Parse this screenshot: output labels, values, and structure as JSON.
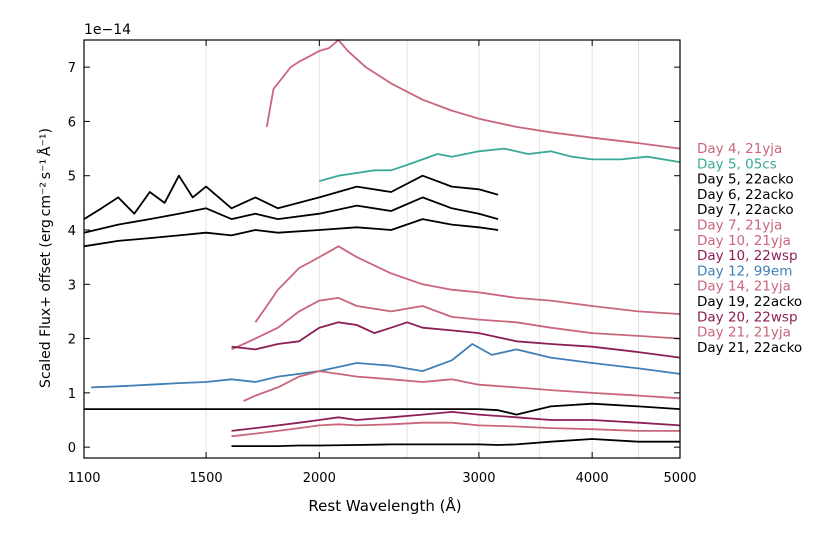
{
  "chart_data": {
    "type": "line",
    "title": "",
    "offset_label": "1e−14",
    "xlabel": "Rest Wavelength (Å)",
    "ylabel": "Scaled Flux+ offset (erg cm⁻² s⁻¹ Å⁻¹)",
    "x_scale": "log",
    "xlim": [
      1100,
      5000
    ],
    "ylim": [
      -0.2,
      7.5
    ],
    "x_ticks": [
      1100,
      1500,
      2000,
      3000,
      4000,
      5000
    ],
    "x_tick_labels": [
      "1100",
      "1500",
      "2000",
      "3000",
      "4000",
      "5000"
    ],
    "y_ticks": [
      0,
      1,
      2,
      3,
      4,
      5,
      6,
      7
    ],
    "y_tick_labels": [
      "0",
      "1",
      "2",
      "3",
      "4",
      "5",
      "6",
      "7"
    ],
    "vertical_gridlines": [
      1500,
      2000,
      2500,
      3000,
      3500,
      4000,
      4500
    ],
    "series": [
      {
        "name": "Day 4, 21yja",
        "color": "#c9667c",
        "x": [
          1750,
          1780,
          1820,
          1860,
          1900,
          1950,
          2000,
          2050,
          2100,
          2150,
          2250,
          2400,
          2600,
          2800,
          3000,
          3300,
          3600,
          4000,
          4500,
          5000
        ],
        "values": [
          5.9,
          6.6,
          6.8,
          7.0,
          7.1,
          7.2,
          7.3,
          7.35,
          7.5,
          7.3,
          7.0,
          6.7,
          6.4,
          6.2,
          6.05,
          5.9,
          5.8,
          5.7,
          5.6,
          5.5
        ]
      },
      {
        "name": "Day 5, 05cs",
        "color": "#3aaa98",
        "x": [
          2000,
          2100,
          2200,
          2300,
          2400,
          2500,
          2600,
          2700,
          2800,
          2900,
          3000,
          3200,
          3400,
          3600,
          3800,
          4000,
          4300,
          4600,
          5000
        ],
        "values": [
          4.9,
          5.0,
          5.05,
          5.1,
          5.1,
          5.2,
          5.3,
          5.4,
          5.35,
          5.4,
          5.45,
          5.5,
          5.4,
          5.45,
          5.35,
          5.3,
          5.3,
          5.35,
          5.25
        ]
      },
      {
        "name": "Day 5, 22acko",
        "color": "#000000",
        "x": [
          1100,
          1150,
          1200,
          1250,
          1300,
          1350,
          1400,
          1450,
          1500,
          1600,
          1700,
          1800,
          2000,
          2200,
          2400,
          2600,
          2800,
          3000,
          3150
        ],
        "values": [
          4.2,
          4.4,
          4.6,
          4.3,
          4.7,
          4.5,
          5.0,
          4.6,
          4.8,
          4.4,
          4.6,
          4.4,
          4.6,
          4.8,
          4.7,
          5.0,
          4.8,
          4.75,
          4.65
        ]
      },
      {
        "name": "Day 6, 22acko",
        "color": "#000000",
        "x": [
          1100,
          1200,
          1300,
          1400,
          1500,
          1600,
          1700,
          1800,
          2000,
          2200,
          2400,
          2600,
          2800,
          3000,
          3150
        ],
        "values": [
          3.95,
          4.1,
          4.2,
          4.3,
          4.4,
          4.2,
          4.3,
          4.2,
          4.3,
          4.45,
          4.35,
          4.6,
          4.4,
          4.3,
          4.2
        ]
      },
      {
        "name": "Day 7, 22acko",
        "color": "#000000",
        "x": [
          1100,
          1200,
          1300,
          1400,
          1500,
          1600,
          1700,
          1800,
          2000,
          2200,
          2400,
          2600,
          2800,
          3000,
          3150
        ],
        "values": [
          3.7,
          3.8,
          3.85,
          3.9,
          3.95,
          3.9,
          4.0,
          3.95,
          4.0,
          4.05,
          4.0,
          4.2,
          4.1,
          4.05,
          4.0
        ]
      },
      {
        "name": "Day 7, 21yja",
        "color": "#c9667c",
        "x": [
          1700,
          1750,
          1800,
          1850,
          1900,
          1950,
          2000,
          2050,
          2100,
          2200,
          2400,
          2600,
          2800,
          3000,
          3300,
          3600,
          4000,
          4500,
          5000
        ],
        "values": [
          2.3,
          2.6,
          2.9,
          3.1,
          3.3,
          3.4,
          3.5,
          3.6,
          3.7,
          3.5,
          3.2,
          3.0,
          2.9,
          2.85,
          2.75,
          2.7,
          2.6,
          2.5,
          2.45
        ]
      },
      {
        "name": "Day 10, 21yja",
        "color": "#c9667c",
        "x": [
          1600,
          1650,
          1700,
          1800,
          1900,
          2000,
          2100,
          2200,
          2400,
          2600,
          2800,
          3000,
          3300,
          3600,
          4000,
          4500,
          5000
        ],
        "values": [
          1.8,
          1.9,
          2.0,
          2.2,
          2.5,
          2.7,
          2.75,
          2.6,
          2.5,
          2.6,
          2.4,
          2.35,
          2.3,
          2.2,
          2.1,
          2.05,
          2.0
        ]
      },
      {
        "name": "Day 10, 22wsp",
        "color": "#8b1f56",
        "x": [
          1600,
          1700,
          1800,
          1900,
          2000,
          2100,
          2200,
          2300,
          2400,
          2500,
          2600,
          2800,
          3000,
          3300,
          3600,
          4000,
          4500,
          5000
        ],
        "values": [
          1.85,
          1.8,
          1.9,
          1.95,
          2.2,
          2.3,
          2.25,
          2.1,
          2.2,
          2.3,
          2.2,
          2.15,
          2.1,
          1.95,
          1.9,
          1.85,
          1.75,
          1.65
        ]
      },
      {
        "name": "Day 12, 99em",
        "color": "#3f7fb5",
        "x": [
          1120,
          1200,
          1300,
          1400,
          1500,
          1600,
          1700,
          1800,
          1900,
          2000,
          2200,
          2400,
          2600,
          2800,
          2950,
          3100,
          3300,
          3600,
          4000,
          4500,
          5000
        ],
        "values": [
          1.1,
          1.12,
          1.15,
          1.18,
          1.2,
          1.25,
          1.2,
          1.3,
          1.35,
          1.4,
          1.55,
          1.5,
          1.4,
          1.6,
          1.9,
          1.7,
          1.8,
          1.65,
          1.55,
          1.45,
          1.35
        ]
      },
      {
        "name": "Day 14, 21yja",
        "color": "#c9667c",
        "x": [
          1650,
          1700,
          1800,
          1900,
          2000,
          2100,
          2200,
          2400,
          2600,
          2800,
          3000,
          3300,
          3600,
          4000,
          4500,
          5000
        ],
        "values": [
          0.85,
          0.95,
          1.1,
          1.3,
          1.4,
          1.35,
          1.3,
          1.25,
          1.2,
          1.25,
          1.15,
          1.1,
          1.05,
          1.0,
          0.95,
          0.9
        ]
      },
      {
        "name": "Day 19, 22acko",
        "color": "#000000",
        "x": [
          1100,
          1200,
          1300,
          1400,
          1500,
          1600,
          1700,
          1800,
          2000,
          2200,
          2400,
          2600,
          2800,
          3000,
          3150,
          3300,
          3600,
          4000,
          4500,
          5000
        ],
        "values": [
          0.7,
          0.7,
          0.7,
          0.7,
          0.7,
          0.7,
          0.7,
          0.7,
          0.7,
          0.7,
          0.7,
          0.7,
          0.7,
          0.7,
          0.68,
          0.6,
          0.75,
          0.8,
          0.75,
          0.7
        ]
      },
      {
        "name": "Day 20, 22wsp",
        "color": "#8b1f56",
        "x": [
          1600,
          1700,
          1800,
          1900,
          2000,
          2100,
          2200,
          2400,
          2600,
          2800,
          3000,
          3300,
          3600,
          4000,
          4500,
          5000
        ],
        "values": [
          0.3,
          0.35,
          0.4,
          0.45,
          0.5,
          0.55,
          0.5,
          0.55,
          0.6,
          0.65,
          0.6,
          0.55,
          0.5,
          0.5,
          0.45,
          0.4
        ]
      },
      {
        "name": "Day 21, 21yja",
        "color": "#c9667c",
        "x": [
          1600,
          1700,
          1800,
          1900,
          2000,
          2100,
          2200,
          2400,
          2600,
          2800,
          3000,
          3300,
          3600,
          4000,
          4500,
          5000
        ],
        "values": [
          0.2,
          0.25,
          0.3,
          0.35,
          0.4,
          0.42,
          0.4,
          0.42,
          0.45,
          0.45,
          0.4,
          0.38,
          0.35,
          0.33,
          0.3,
          0.3
        ]
      },
      {
        "name": "Day 21, 22acko",
        "color": "#000000",
        "x": [
          1600,
          1700,
          1800,
          1900,
          2000,
          2200,
          2400,
          2600,
          2800,
          3000,
          3150,
          3300,
          3600,
          4000,
          4500,
          5000
        ],
        "values": [
          0.02,
          0.02,
          0.02,
          0.03,
          0.03,
          0.04,
          0.05,
          0.05,
          0.05,
          0.05,
          0.04,
          0.05,
          0.1,
          0.15,
          0.1,
          0.1
        ]
      }
    ],
    "legend": "right"
  }
}
